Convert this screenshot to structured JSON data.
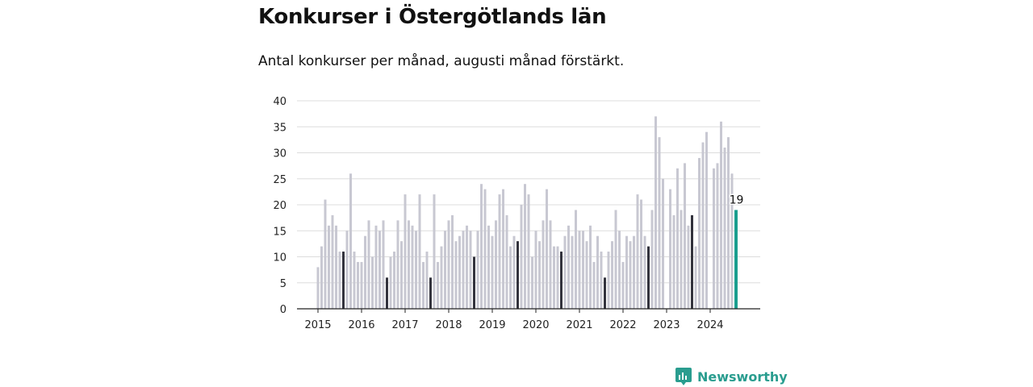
{
  "header": {
    "title": "Konkurser i Östergötlands län",
    "subtitle": "Antal konkurser per månad, augusti månad förstärkt."
  },
  "brand": {
    "name": "Newsworthy",
    "icon": "newsworthy-logo-icon",
    "color": "#2a9d8f"
  },
  "colors": {
    "regular": "#c8c8d2",
    "august": "#33333d",
    "latest": "#1a9e8f",
    "grid": "#dddddd",
    "axis": "#222222"
  },
  "chart_data": {
    "type": "bar",
    "title": "Konkurser i Östergötlands län",
    "subtitle": "Antal konkurser per månad, augusti månad förstärkt.",
    "xlabel": "",
    "ylabel": "",
    "ylim": [
      0,
      40
    ],
    "yticks": [
      "0",
      "5",
      "10",
      "15",
      "20",
      "25",
      "30",
      "35",
      "40"
    ],
    "grid": true,
    "highlight_month": "08",
    "latest_label": "19",
    "categories": [
      "2015-01",
      "2015-02",
      "2015-03",
      "2015-04",
      "2015-05",
      "2015-06",
      "2015-07",
      "2015-08",
      "2015-09",
      "2015-10",
      "2015-11",
      "2015-12",
      "2016-01",
      "2016-02",
      "2016-03",
      "2016-04",
      "2016-05",
      "2016-06",
      "2016-07",
      "2016-08",
      "2016-09",
      "2016-10",
      "2016-11",
      "2016-12",
      "2017-01",
      "2017-02",
      "2017-03",
      "2017-04",
      "2017-05",
      "2017-06",
      "2017-07",
      "2017-08",
      "2017-09",
      "2017-10",
      "2017-11",
      "2017-12",
      "2018-01",
      "2018-02",
      "2018-03",
      "2018-04",
      "2018-05",
      "2018-06",
      "2018-07",
      "2018-08",
      "2018-09",
      "2018-10",
      "2018-11",
      "2018-12",
      "2019-01",
      "2019-02",
      "2019-03",
      "2019-04",
      "2019-05",
      "2019-06",
      "2019-07",
      "2019-08",
      "2019-09",
      "2019-10",
      "2019-11",
      "2019-12",
      "2020-01",
      "2020-02",
      "2020-03",
      "2020-04",
      "2020-05",
      "2020-06",
      "2020-07",
      "2020-08",
      "2020-09",
      "2020-10",
      "2020-11",
      "2020-12",
      "2021-01",
      "2021-02",
      "2021-03",
      "2021-04",
      "2021-05",
      "2021-06",
      "2021-07",
      "2021-08",
      "2021-09",
      "2021-10",
      "2021-11",
      "2021-12",
      "2022-01",
      "2022-02",
      "2022-03",
      "2022-04",
      "2022-05",
      "2022-06",
      "2022-07",
      "2022-08",
      "2022-09",
      "2022-10",
      "2022-11",
      "2022-12",
      "2023-01",
      "2023-02",
      "2023-03",
      "2023-04",
      "2023-05",
      "2023-06",
      "2023-07",
      "2023-08",
      "2023-09",
      "2023-10",
      "2023-11",
      "2023-12",
      "2024-01",
      "2024-02",
      "2024-03",
      "2024-04",
      "2024-05",
      "2024-06",
      "2024-07",
      "2024-08"
    ],
    "xticks": [
      "2015",
      "2016",
      "2017",
      "2018",
      "2019",
      "2020",
      "2021",
      "2022",
      "2023",
      "2024"
    ],
    "values": [
      8,
      12,
      21,
      16,
      18,
      16,
      11,
      11,
      15,
      26,
      11,
      9,
      9,
      14,
      17,
      10,
      16,
      15,
      17,
      6,
      10,
      11,
      17,
      13,
      22,
      17,
      16,
      15,
      22,
      9,
      11,
      6,
      22,
      9,
      12,
      15,
      17,
      18,
      13,
      14,
      15,
      16,
      15,
      10,
      15,
      24,
      23,
      16,
      14,
      17,
      22,
      23,
      18,
      12,
      14,
      13,
      20,
      24,
      22,
      10,
      15,
      13,
      17,
      23,
      17,
      12,
      12,
      11,
      14,
      16,
      14,
      19,
      15,
      15,
      13,
      16,
      9,
      14,
      11,
      6,
      11,
      13,
      19,
      15,
      9,
      14,
      13,
      14,
      22,
      21,
      14,
      12,
      19,
      37,
      33,
      25,
      0,
      23,
      18,
      27,
      19,
      28,
      16,
      18,
      12,
      29,
      32,
      34,
      0,
      27,
      28,
      36,
      31,
      33,
      26,
      19
    ]
  }
}
